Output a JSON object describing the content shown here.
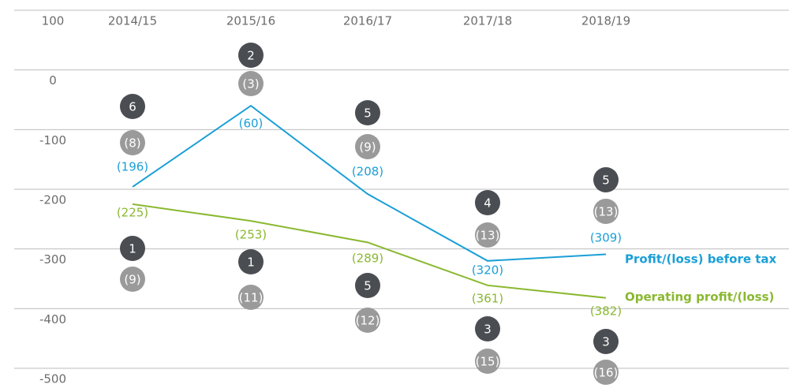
{
  "chart_data": {
    "type": "line",
    "categories": [
      "2014/15",
      "2015/16",
      "2016/17",
      "2017/18",
      "2018/19"
    ],
    "series": [
      {
        "name": "Profit/(loss) before tax",
        "color": "#1a9fd6",
        "values": [
          -196,
          -60,
          -208,
          -320,
          -309
        ],
        "value_labels": [
          "(196)",
          "(60)",
          "(208)",
          "(320)",
          "(309)"
        ]
      },
      {
        "name": "Operating profit/(loss)",
        "color": "#8ab830",
        "values": [
          -225,
          -253,
          -289,
          -361,
          -382
        ],
        "value_labels": [
          "(225)",
          "(253)",
          "(289)",
          "(361)",
          "(382)"
        ]
      }
    ],
    "badges": [
      {
        "color": "#4a4d52",
        "values": [
          6,
          2,
          5,
          4,
          5
        ]
      },
      {
        "color": "#9a9a9a",
        "values": [
          -8,
          -3,
          -9,
          -13,
          -13
        ],
        "value_labels": [
          "(8)",
          "(3)",
          "(9)",
          "(13)",
          "(13)"
        ]
      },
      {
        "color": "#4a4d52",
        "values": [
          1,
          1,
          5,
          3,
          3
        ]
      },
      {
        "color": "#9a9a9a",
        "values": [
          -9,
          -11,
          -12,
          -15,
          -16
        ],
        "value_labels": [
          "(9)",
          "(11)",
          "(12)",
          "(15)",
          "(16)"
        ]
      }
    ],
    "ylim": [
      -500,
      100
    ],
    "yticks": [
      100,
      0,
      -100,
      -200,
      -300,
      -400,
      -500
    ],
    "grid": true
  }
}
